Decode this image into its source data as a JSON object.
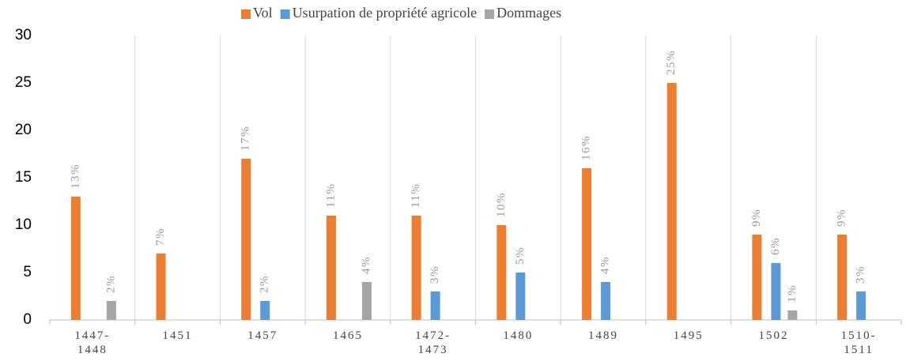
{
  "chart_data": {
    "type": "bar",
    "categories": [
      "1447-\n1448",
      "1451",
      "1457",
      "1465",
      "1472-\n1473",
      "1480",
      "1489",
      "1495",
      "1502",
      "1510-\n1511"
    ],
    "series": [
      {
        "name": "Vol",
        "color": "#ed7d31",
        "values": [
          13,
          7,
          17,
          11,
          11,
          10,
          16,
          25,
          9,
          9
        ],
        "value_labels": [
          "13%",
          "7%",
          "17%",
          "11%",
          "11%",
          "10%",
          "16%",
          "25%",
          "9%",
          "9%"
        ]
      },
      {
        "name": "Usurpation de propriété agricole",
        "color": "#5b9bd5",
        "values": [
          null,
          null,
          2,
          null,
          3,
          5,
          4,
          null,
          6,
          3
        ],
        "value_labels": [
          null,
          null,
          "2%",
          null,
          "3%",
          "5%",
          "4%",
          null,
          "6%",
          "3%"
        ]
      },
      {
        "name": "Dommages",
        "color": "#a5a5a5",
        "values": [
          2,
          null,
          null,
          4,
          null,
          null,
          null,
          null,
          1,
          null
        ],
        "value_labels": [
          "2%",
          null,
          null,
          "4%",
          null,
          null,
          null,
          null,
          "1%",
          null
        ]
      }
    ],
    "ylim": [
      0,
      30
    ],
    "yticks": [
      0,
      5,
      10,
      15,
      20,
      25,
      30
    ],
    "grid": true,
    "legend": "top"
  }
}
